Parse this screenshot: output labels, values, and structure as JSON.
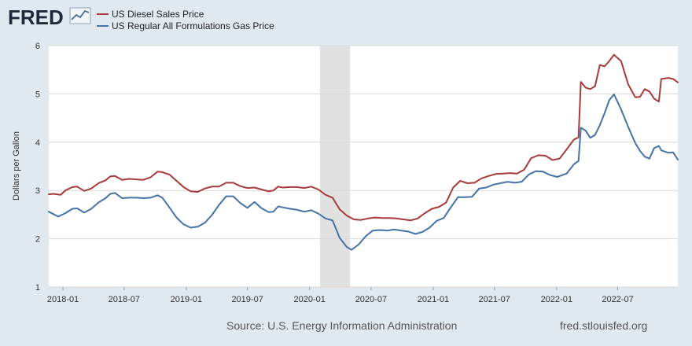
{
  "header": {
    "logo_text": "FRED",
    "logo_icon": "fred-chart-icon"
  },
  "colors": {
    "background": "#e1e9f0",
    "plot_background": "#ffffff",
    "grid": "#d9d9d9",
    "recession": "#e1e1e1",
    "diesel": "#a83a3a",
    "gas": "#4572a7",
    "logo": "#1e2a3a"
  },
  "footer": {
    "source": "Source: U.S. Energy Information Administration",
    "site": "fred.stlouisfed.org"
  },
  "chart_data": {
    "type": "line",
    "ylabel": "Dollars per Gallon",
    "xlabel": "",
    "title": "",
    "ylim": [
      1,
      6
    ],
    "xlim": [
      "2017-11-20",
      "2022-12-26"
    ],
    "yticks": [
      1,
      2,
      3,
      4,
      5,
      6
    ],
    "xticks": [
      "2018-01",
      "2018-07",
      "2019-01",
      "2019-07",
      "2020-01",
      "2020-07",
      "2021-01",
      "2021-07",
      "2022-01",
      "2022-07"
    ],
    "grid": true,
    "legend_position": "top-left",
    "recession_shading": [
      [
        "2020-02-01",
        "2020-04-30"
      ]
    ],
    "series": [
      {
        "name": "US Diesel Sales Price",
        "color": "#a83a3a",
        "points": [
          [
            "2017-11-20",
            2.92
          ],
          [
            "2017-12-04",
            2.93
          ],
          [
            "2017-12-25",
            2.91
          ],
          [
            "2018-01-08",
            3.0
          ],
          [
            "2018-01-29",
            3.07
          ],
          [
            "2018-02-12",
            3.08
          ],
          [
            "2018-03-05",
            2.99
          ],
          [
            "2018-03-26",
            3.04
          ],
          [
            "2018-04-16",
            3.15
          ],
          [
            "2018-05-07",
            3.21
          ],
          [
            "2018-05-21",
            3.29
          ],
          [
            "2018-06-04",
            3.3
          ],
          [
            "2018-06-25",
            3.22
          ],
          [
            "2018-07-16",
            3.24
          ],
          [
            "2018-08-06",
            3.23
          ],
          [
            "2018-08-27",
            3.22
          ],
          [
            "2018-09-17",
            3.27
          ],
          [
            "2018-10-08",
            3.39
          ],
          [
            "2018-10-22",
            3.38
          ],
          [
            "2018-11-12",
            3.33
          ],
          [
            "2018-12-03",
            3.2
          ],
          [
            "2018-12-24",
            3.07
          ],
          [
            "2019-01-14",
            2.98
          ],
          [
            "2019-02-04",
            2.97
          ],
          [
            "2019-02-25",
            3.04
          ],
          [
            "2019-03-18",
            3.08
          ],
          [
            "2019-04-08",
            3.08
          ],
          [
            "2019-04-29",
            3.16
          ],
          [
            "2019-05-20",
            3.16
          ],
          [
            "2019-06-10",
            3.09
          ],
          [
            "2019-07-01",
            3.05
          ],
          [
            "2019-07-22",
            3.06
          ],
          [
            "2019-08-12",
            3.02
          ],
          [
            "2019-09-02",
            2.98
          ],
          [
            "2019-09-16",
            3.0
          ],
          [
            "2019-09-30",
            3.08
          ],
          [
            "2019-10-14",
            3.06
          ],
          [
            "2019-11-04",
            3.07
          ],
          [
            "2019-11-25",
            3.07
          ],
          [
            "2019-12-16",
            3.05
          ],
          [
            "2020-01-06",
            3.08
          ],
          [
            "2020-01-27",
            3.02
          ],
          [
            "2020-02-17",
            2.91
          ],
          [
            "2020-03-09",
            2.85
          ],
          [
            "2020-03-30",
            2.61
          ],
          [
            "2020-04-20",
            2.48
          ],
          [
            "2020-05-11",
            2.4
          ],
          [
            "2020-06-01",
            2.39
          ],
          [
            "2020-06-22",
            2.42
          ],
          [
            "2020-07-13",
            2.44
          ],
          [
            "2020-08-03",
            2.43
          ],
          [
            "2020-08-24",
            2.43
          ],
          [
            "2020-09-14",
            2.42
          ],
          [
            "2020-10-05",
            2.4
          ],
          [
            "2020-10-26",
            2.38
          ],
          [
            "2020-11-16",
            2.42
          ],
          [
            "2020-12-07",
            2.53
          ],
          [
            "2020-12-28",
            2.62
          ],
          [
            "2021-01-18",
            2.66
          ],
          [
            "2021-02-08",
            2.75
          ],
          [
            "2021-03-01",
            3.06
          ],
          [
            "2021-03-22",
            3.2
          ],
          [
            "2021-04-12",
            3.15
          ],
          [
            "2021-05-03",
            3.16
          ],
          [
            "2021-05-24",
            3.25
          ],
          [
            "2021-06-14",
            3.3
          ],
          [
            "2021-07-05",
            3.34
          ],
          [
            "2021-07-26",
            3.35
          ],
          [
            "2021-08-16",
            3.36
          ],
          [
            "2021-09-06",
            3.35
          ],
          [
            "2021-09-27",
            3.43
          ],
          [
            "2021-10-18",
            3.67
          ],
          [
            "2021-11-08",
            3.73
          ],
          [
            "2021-11-29",
            3.72
          ],
          [
            "2021-12-20",
            3.63
          ],
          [
            "2022-01-10",
            3.66
          ],
          [
            "2022-01-31",
            3.85
          ],
          [
            "2022-02-21",
            4.05
          ],
          [
            "2022-03-07",
            4.1
          ],
          [
            "2022-03-14",
            5.25
          ],
          [
            "2022-03-28",
            5.13
          ],
          [
            "2022-04-11",
            5.1
          ],
          [
            "2022-04-25",
            5.16
          ],
          [
            "2022-05-09",
            5.6
          ],
          [
            "2022-05-23",
            5.57
          ],
          [
            "2022-06-06",
            5.68
          ],
          [
            "2022-06-20",
            5.81
          ],
          [
            "2022-07-11",
            5.68
          ],
          [
            "2022-08-01",
            5.2
          ],
          [
            "2022-08-22",
            4.93
          ],
          [
            "2022-09-05",
            4.94
          ],
          [
            "2022-09-19",
            5.1
          ],
          [
            "2022-10-03",
            5.05
          ],
          [
            "2022-10-17",
            4.9
          ],
          [
            "2022-10-31",
            4.84
          ],
          [
            "2022-11-07",
            5.31
          ],
          [
            "2022-11-28",
            5.33
          ],
          [
            "2022-12-12",
            5.31
          ],
          [
            "2022-12-26",
            5.24
          ]
        ]
      },
      {
        "name": "US Regular All Formulations Gas Price",
        "color": "#4572a7",
        "points": [
          [
            "2017-11-20",
            2.56
          ],
          [
            "2017-12-04",
            2.51
          ],
          [
            "2017-12-18",
            2.46
          ],
          [
            "2018-01-08",
            2.53
          ],
          [
            "2018-01-29",
            2.62
          ],
          [
            "2018-02-12",
            2.63
          ],
          [
            "2018-03-05",
            2.54
          ],
          [
            "2018-03-26",
            2.62
          ],
          [
            "2018-04-16",
            2.75
          ],
          [
            "2018-05-07",
            2.84
          ],
          [
            "2018-05-21",
            2.93
          ],
          [
            "2018-06-04",
            2.95
          ],
          [
            "2018-06-25",
            2.84
          ],
          [
            "2018-07-16",
            2.85
          ],
          [
            "2018-08-06",
            2.85
          ],
          [
            "2018-08-27",
            2.84
          ],
          [
            "2018-09-17",
            2.85
          ],
          [
            "2018-10-08",
            2.9
          ],
          [
            "2018-10-22",
            2.85
          ],
          [
            "2018-11-12",
            2.65
          ],
          [
            "2018-12-03",
            2.44
          ],
          [
            "2018-12-24",
            2.3
          ],
          [
            "2019-01-14",
            2.23
          ],
          [
            "2019-02-04",
            2.25
          ],
          [
            "2019-02-25",
            2.33
          ],
          [
            "2019-03-18",
            2.49
          ],
          [
            "2019-04-08",
            2.7
          ],
          [
            "2019-04-29",
            2.88
          ],
          [
            "2019-05-20",
            2.88
          ],
          [
            "2019-06-10",
            2.74
          ],
          [
            "2019-07-01",
            2.64
          ],
          [
            "2019-07-22",
            2.76
          ],
          [
            "2019-08-12",
            2.63
          ],
          [
            "2019-09-02",
            2.55
          ],
          [
            "2019-09-16",
            2.56
          ],
          [
            "2019-09-30",
            2.67
          ],
          [
            "2019-10-14",
            2.65
          ],
          [
            "2019-11-04",
            2.62
          ],
          [
            "2019-11-25",
            2.6
          ],
          [
            "2019-12-16",
            2.56
          ],
          [
            "2020-01-06",
            2.59
          ],
          [
            "2020-01-27",
            2.52
          ],
          [
            "2020-02-17",
            2.42
          ],
          [
            "2020-03-09",
            2.38
          ],
          [
            "2020-03-30",
            2.02
          ],
          [
            "2020-04-20",
            1.83
          ],
          [
            "2020-05-04",
            1.77
          ],
          [
            "2020-05-25",
            1.88
          ],
          [
            "2020-06-15",
            2.05
          ],
          [
            "2020-07-06",
            2.17
          ],
          [
            "2020-07-27",
            2.18
          ],
          [
            "2020-08-17",
            2.17
          ],
          [
            "2020-09-07",
            2.19
          ],
          [
            "2020-09-28",
            2.17
          ],
          [
            "2020-10-19",
            2.15
          ],
          [
            "2020-11-09",
            2.1
          ],
          [
            "2020-11-30",
            2.14
          ],
          [
            "2020-12-21",
            2.23
          ],
          [
            "2021-01-11",
            2.37
          ],
          [
            "2021-02-01",
            2.43
          ],
          [
            "2021-02-22",
            2.65
          ],
          [
            "2021-03-15",
            2.86
          ],
          [
            "2021-04-05",
            2.86
          ],
          [
            "2021-04-26",
            2.87
          ],
          [
            "2021-05-17",
            3.04
          ],
          [
            "2021-06-07",
            3.06
          ],
          [
            "2021-06-28",
            3.12
          ],
          [
            "2021-07-19",
            3.15
          ],
          [
            "2021-08-09",
            3.18
          ],
          [
            "2021-08-30",
            3.16
          ],
          [
            "2021-09-20",
            3.18
          ],
          [
            "2021-10-11",
            3.33
          ],
          [
            "2021-11-01",
            3.4
          ],
          [
            "2021-11-22",
            3.39
          ],
          [
            "2021-12-13",
            3.32
          ],
          [
            "2022-01-03",
            3.28
          ],
          [
            "2022-01-31",
            3.35
          ],
          [
            "2022-02-21",
            3.54
          ],
          [
            "2022-03-07",
            3.61
          ],
          [
            "2022-03-14",
            4.3
          ],
          [
            "2022-03-28",
            4.24
          ],
          [
            "2022-04-11",
            4.09
          ],
          [
            "2022-04-25",
            4.15
          ],
          [
            "2022-05-09",
            4.35
          ],
          [
            "2022-05-23",
            4.6
          ],
          [
            "2022-06-06",
            4.87
          ],
          [
            "2022-06-20",
            4.99
          ],
          [
            "2022-07-11",
            4.68
          ],
          [
            "2022-08-01",
            4.32
          ],
          [
            "2022-08-22",
            3.98
          ],
          [
            "2022-09-05",
            3.82
          ],
          [
            "2022-09-19",
            3.7
          ],
          [
            "2022-10-03",
            3.66
          ],
          [
            "2022-10-17",
            3.88
          ],
          [
            "2022-10-31",
            3.92
          ],
          [
            "2022-11-07",
            3.83
          ],
          [
            "2022-11-28",
            3.78
          ],
          [
            "2022-12-12",
            3.79
          ],
          [
            "2022-12-26",
            3.64
          ]
        ]
      }
    ]
  }
}
